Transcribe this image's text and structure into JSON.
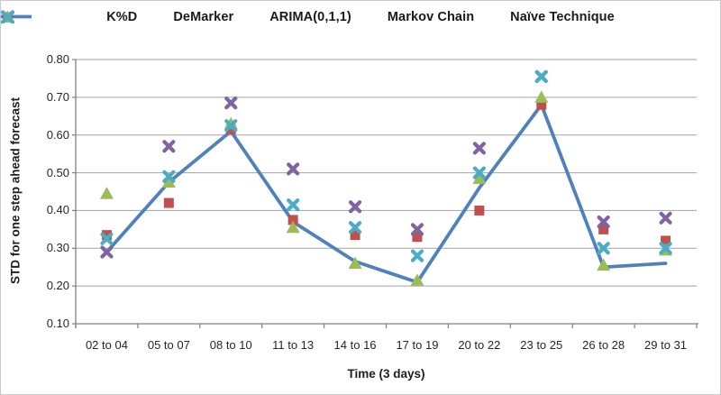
{
  "figure": {
    "background": "#ffffff",
    "border_color": "#c9c9c9"
  },
  "chart_data": {
    "type": "line",
    "title": "",
    "xlabel": "Time (3 days)",
    "ylabel": "STD for one step ahead forecast",
    "categories": [
      "02 to 04",
      "05 to 07",
      "08 to 10",
      "11 to 13",
      "14 to 16",
      "17 to 19",
      "20 to 22",
      "23 to 25",
      "26 to 28",
      "29 to 31"
    ],
    "series": [
      {
        "name": "K%D",
        "render": "line",
        "marker": "line",
        "color": "#4F81BD",
        "values": [
          0.29,
          0.475,
          0.61,
          0.37,
          0.265,
          0.21,
          0.46,
          0.68,
          0.25,
          0.26
        ]
      },
      {
        "name": "DeMarker",
        "render": "scatter",
        "marker": "square",
        "color": "#C0504D",
        "values": [
          0.335,
          0.42,
          0.615,
          0.375,
          0.335,
          0.33,
          0.4,
          0.68,
          0.35,
          0.32
        ]
      },
      {
        "name": "ARIMA(0,1,1)",
        "render": "scatter",
        "marker": "triangle",
        "color": "#9BBB59",
        "values": [
          0.445,
          0.475,
          0.63,
          0.355,
          0.26,
          0.215,
          0.485,
          0.7,
          0.255,
          0.295
        ]
      },
      {
        "name": "Markov Chain",
        "render": "scatter",
        "marker": "x",
        "color": "#8064A2",
        "values": [
          0.29,
          0.57,
          0.685,
          0.51,
          0.41,
          0.35,
          0.565,
          0.755,
          0.37,
          0.38
        ]
      },
      {
        "name": "Naïve Technique",
        "render": "scatter",
        "marker": "x",
        "color": "#4BACC6",
        "values": [
          0.325,
          0.49,
          0.625,
          0.415,
          0.355,
          0.28,
          0.5,
          0.755,
          0.3,
          0.3
        ]
      }
    ],
    "ylim": [
      0.1,
      0.8
    ],
    "ytick_step": 0.1,
    "ytick_labels": [
      "0.10",
      "0.20",
      "0.30",
      "0.40",
      "0.50",
      "0.60",
      "0.70",
      "0.80"
    ],
    "grid": true,
    "legend_position": "top",
    "colors": {
      "grid": "#A3A3A3",
      "axis": "#808080",
      "text": "#262626"
    }
  }
}
